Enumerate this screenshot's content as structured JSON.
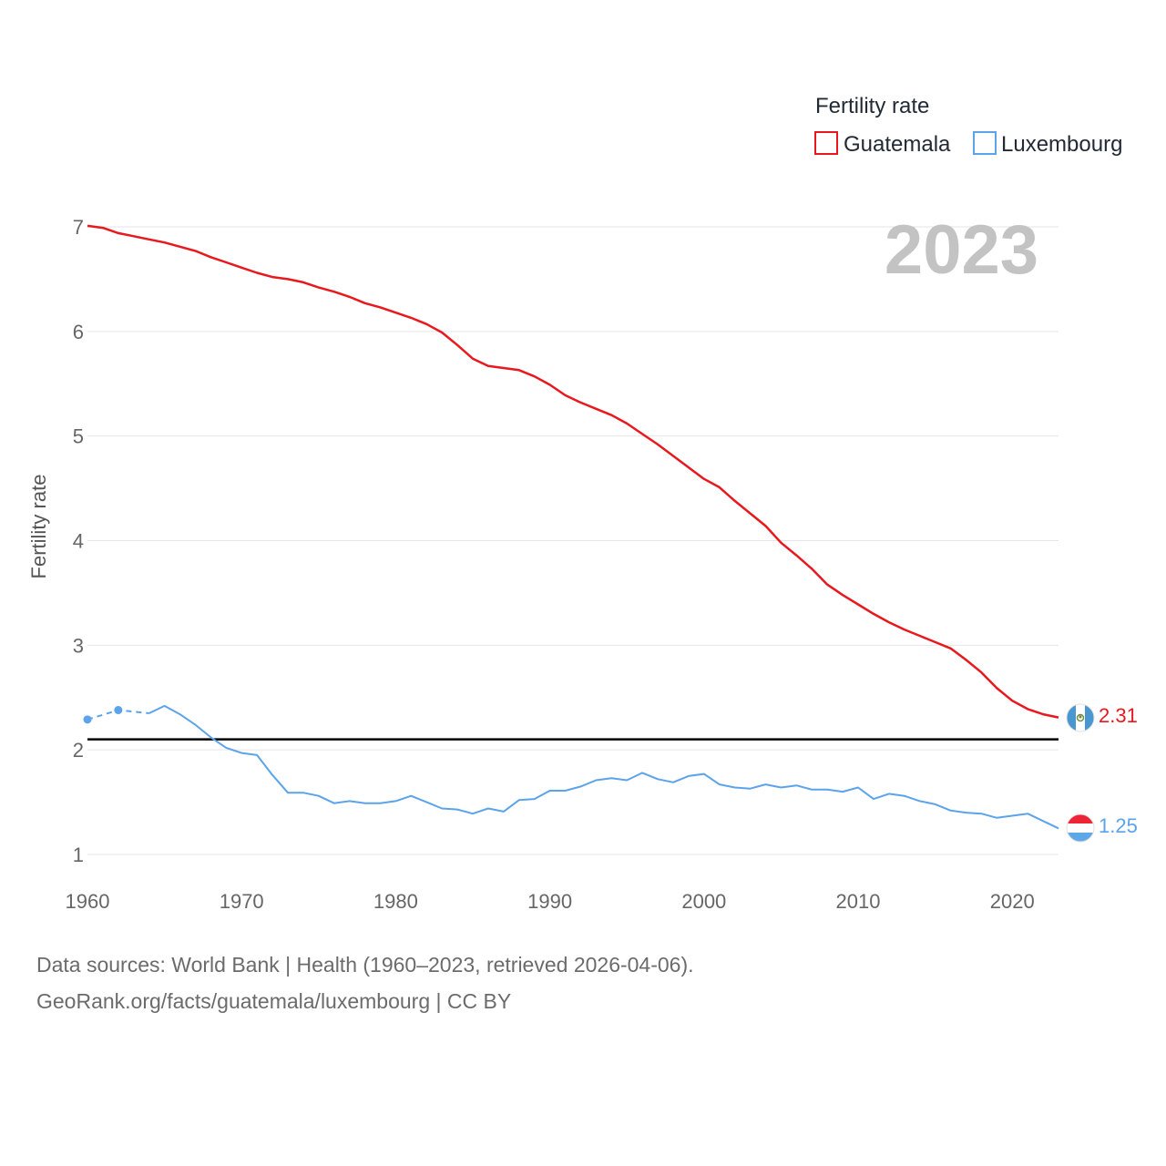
{
  "chart_data": {
    "type": "line",
    "year_label": "2023",
    "ylabel": "Fertility rate",
    "xlim": [
      1960,
      2023
    ],
    "ylim": [
      1,
      7
    ],
    "x_ticks": [
      1960,
      1970,
      1980,
      1990,
      2000,
      2010,
      2020
    ],
    "y_ticks": [
      1,
      2,
      3,
      4,
      5,
      6,
      7
    ],
    "grid": true,
    "reference_line": 2.1,
    "legend": {
      "title": "Fertility rate",
      "position": "top-right"
    },
    "series": [
      {
        "name": "Guatemala",
        "color": "#e8191e",
        "end_label": "2.31",
        "flag": "guatemala-flag",
        "x": [
          1960,
          1961,
          1962,
          1963,
          1964,
          1965,
          1966,
          1967,
          1968,
          1969,
          1970,
          1971,
          1972,
          1973,
          1974,
          1975,
          1976,
          1977,
          1978,
          1979,
          1980,
          1981,
          1982,
          1983,
          1984,
          1985,
          1986,
          1987,
          1988,
          1989,
          1990,
          1991,
          1992,
          1993,
          1994,
          1995,
          1996,
          1997,
          1998,
          1999,
          2000,
          2001,
          2002,
          2003,
          2004,
          2005,
          2006,
          2007,
          2008,
          2009,
          2010,
          2011,
          2012,
          2013,
          2014,
          2015,
          2016,
          2017,
          2018,
          2019,
          2020,
          2021,
          2022,
          2023
        ],
        "y": [
          7.01,
          6.99,
          6.94,
          6.91,
          6.88,
          6.85,
          6.81,
          6.77,
          6.71,
          6.66,
          6.61,
          6.56,
          6.52,
          6.5,
          6.47,
          6.42,
          6.38,
          6.33,
          6.27,
          6.23,
          6.18,
          6.13,
          6.07,
          5.99,
          5.87,
          5.74,
          5.67,
          5.65,
          5.63,
          5.57,
          5.49,
          5.39,
          5.32,
          5.26,
          5.2,
          5.12,
          5.02,
          4.92,
          4.81,
          4.7,
          4.59,
          4.51,
          4.38,
          4.26,
          4.14,
          3.98,
          3.86,
          3.73,
          3.58,
          3.48,
          3.39,
          3.3,
          3.22,
          3.15,
          3.09,
          3.03,
          2.97,
          2.86,
          2.74,
          2.59,
          2.47,
          2.39,
          2.34,
          2.31
        ]
      },
      {
        "name": "Luxembourg",
        "color": "#5ba3ea",
        "end_label": "1.25",
        "flag": "luxembourg-flag",
        "dashed_until": 1964,
        "markers": [
          1960,
          1962
        ],
        "x": [
          1960,
          1962,
          1964,
          1965,
          1966,
          1967,
          1968,
          1969,
          1970,
          1971,
          1972,
          1973,
          1974,
          1975,
          1976,
          1977,
          1978,
          1979,
          1980,
          1981,
          1982,
          1983,
          1984,
          1985,
          1986,
          1987,
          1988,
          1989,
          1990,
          1991,
          1992,
          1993,
          1994,
          1995,
          1996,
          1997,
          1998,
          1999,
          2000,
          2001,
          2002,
          2003,
          2004,
          2005,
          2006,
          2007,
          2008,
          2009,
          2010,
          2011,
          2012,
          2013,
          2014,
          2015,
          2016,
          2017,
          2018,
          2019,
          2020,
          2021,
          2022,
          2023
        ],
        "y": [
          2.29,
          2.38,
          2.35,
          2.42,
          2.34,
          2.24,
          2.12,
          2.02,
          1.97,
          1.95,
          1.76,
          1.59,
          1.59,
          1.56,
          1.49,
          1.51,
          1.49,
          1.49,
          1.51,
          1.56,
          1.5,
          1.44,
          1.43,
          1.39,
          1.44,
          1.41,
          1.52,
          1.53,
          1.61,
          1.61,
          1.65,
          1.71,
          1.73,
          1.71,
          1.78,
          1.72,
          1.69,
          1.75,
          1.77,
          1.67,
          1.64,
          1.63,
          1.67,
          1.64,
          1.66,
          1.62,
          1.62,
          1.6,
          1.64,
          1.53,
          1.58,
          1.56,
          1.51,
          1.48,
          1.42,
          1.4,
          1.39,
          1.35,
          1.37,
          1.39,
          1.32,
          1.25
        ]
      }
    ]
  },
  "footer": {
    "line1": "Data sources: World Bank | Health (1960–2023, retrieved 2026-04-06).",
    "line2": "GeoRank.org/facts/guatemala/luxembourg | CC BY"
  }
}
